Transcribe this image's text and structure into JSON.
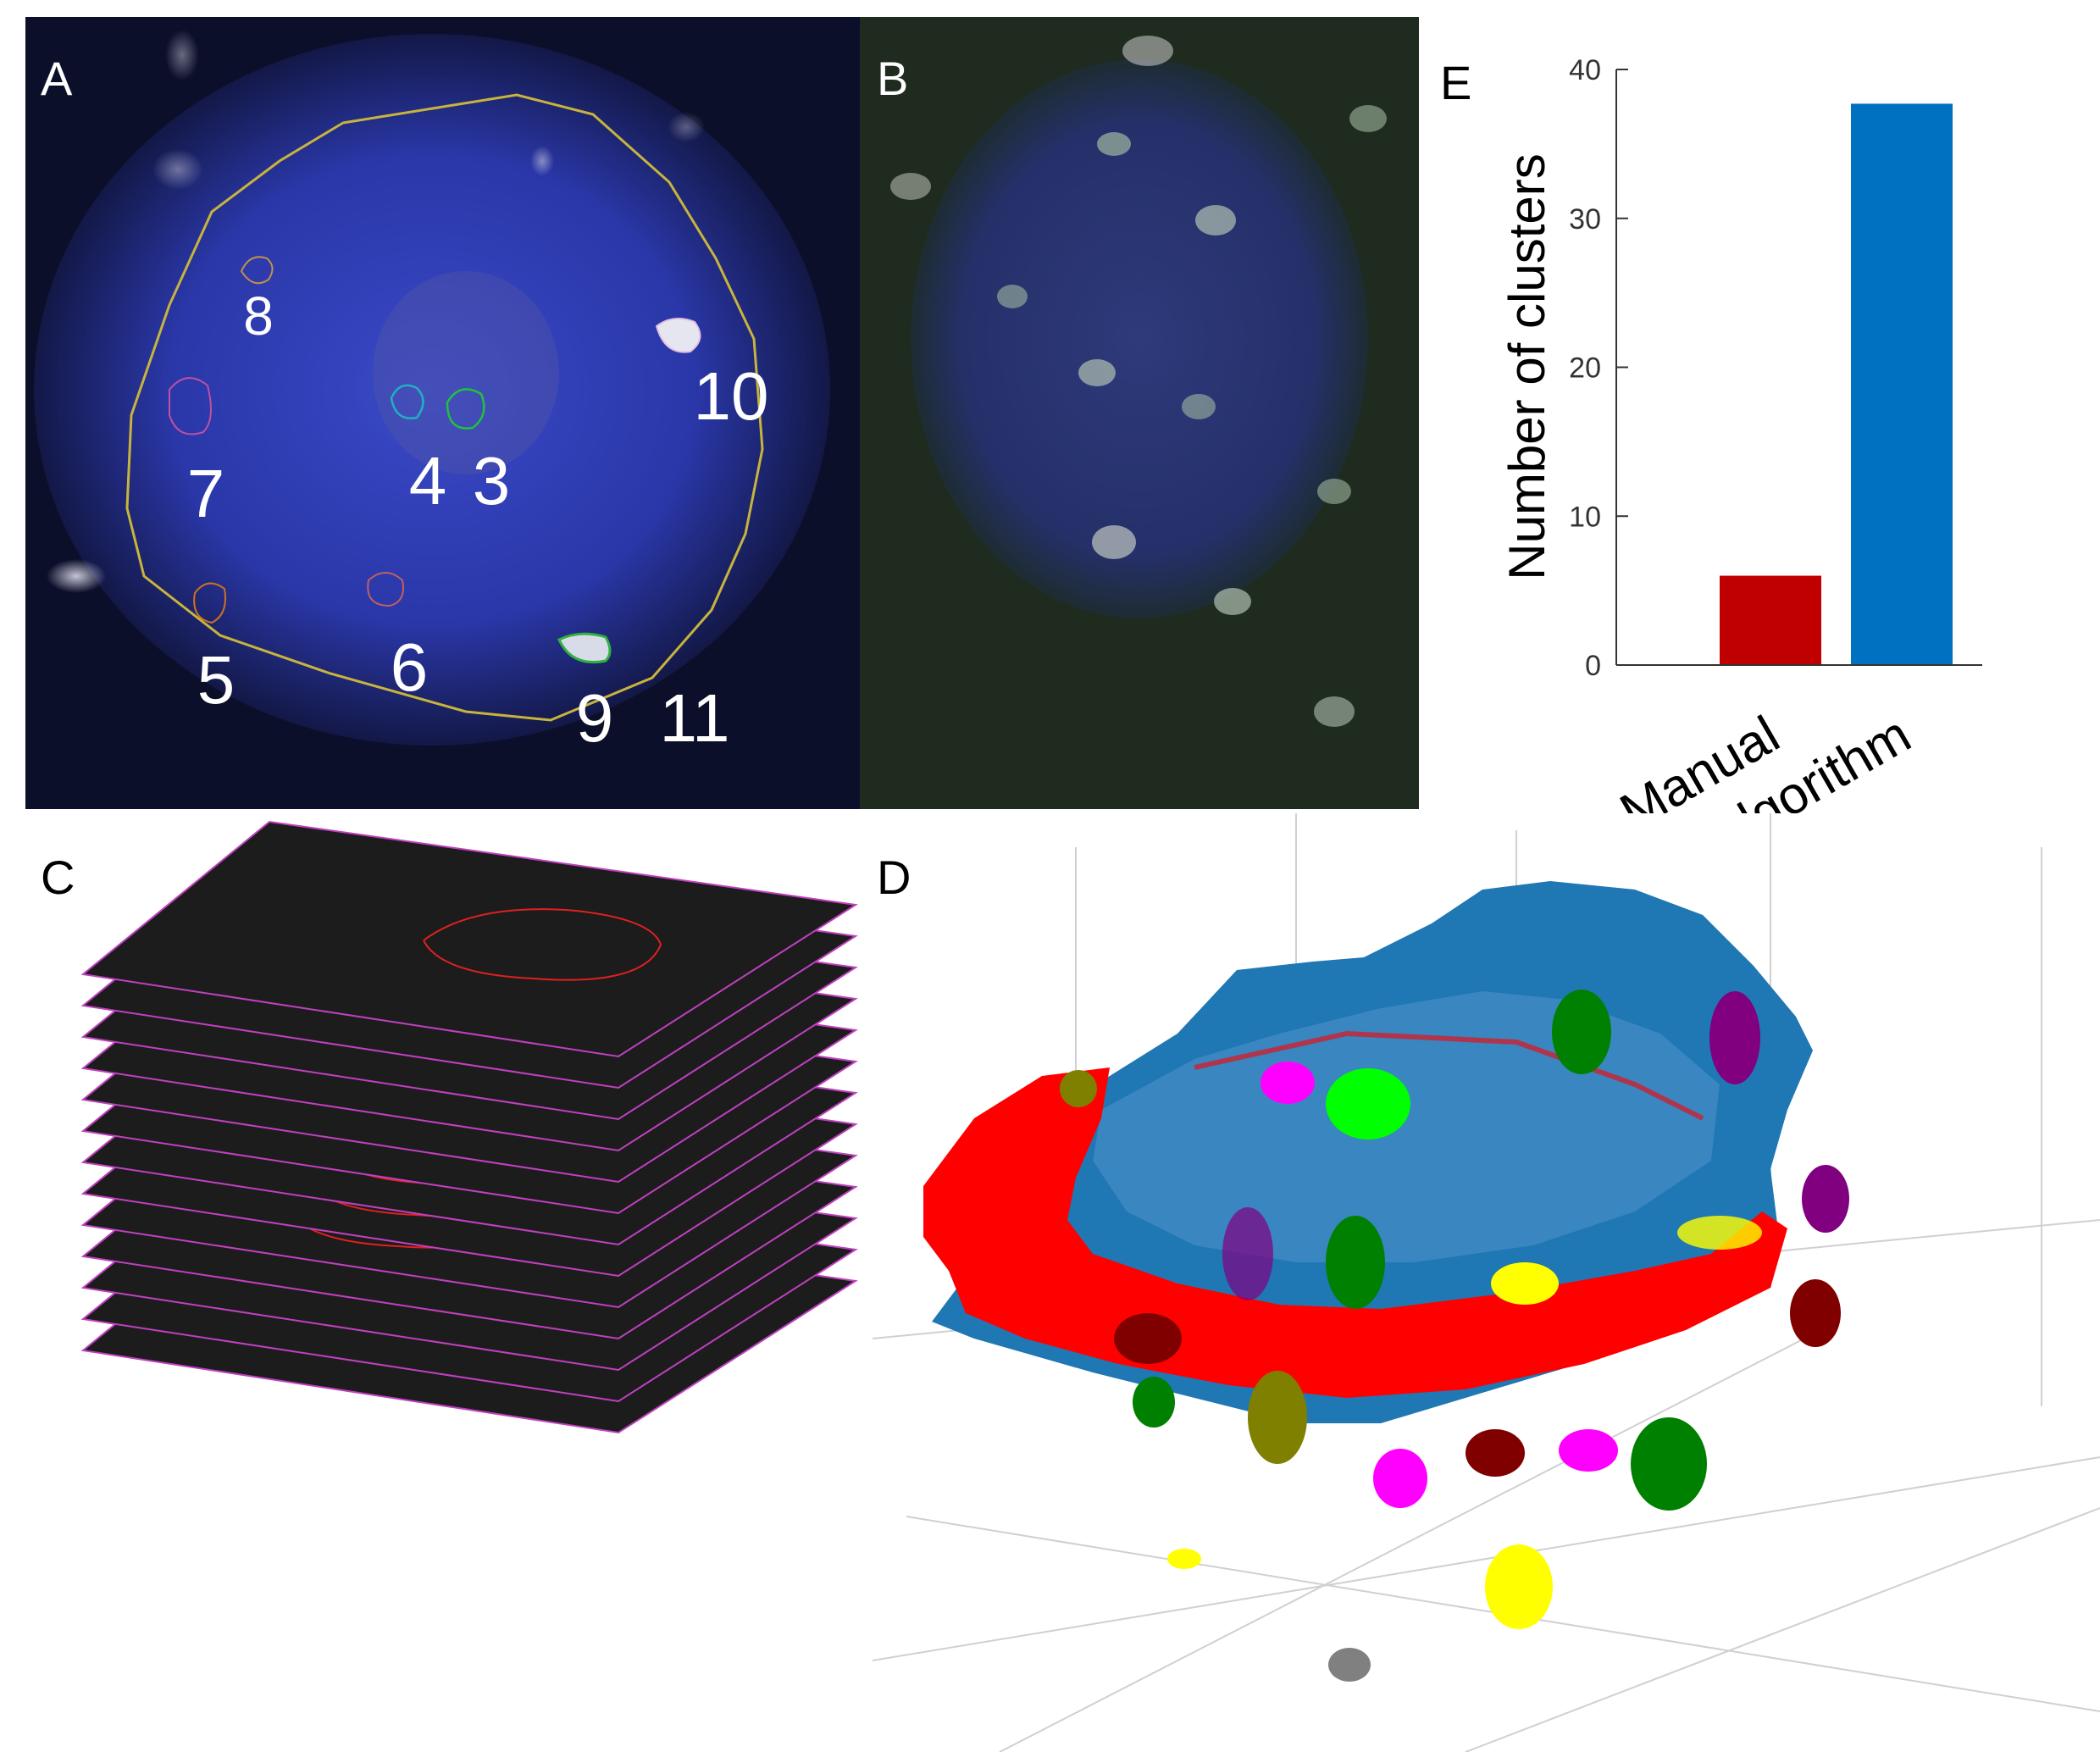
{
  "figure": {
    "panels": {
      "A": {
        "letter": "A",
        "cluster_labels": [
          "8",
          "10",
          "7",
          "4",
          "3",
          "5",
          "6",
          "9",
          "11"
        ]
      },
      "B": {
        "letter": "B"
      },
      "C": {
        "letter": "C",
        "slice_count": 13
      },
      "D": {
        "letter": "D"
      },
      "E": {
        "letter": "E"
      }
    }
  },
  "colors": {
    "outline_yellow": "#c8b43c",
    "nucleus_blue": "#2b3a9e",
    "bar_manual": "#c00000",
    "bar_algorithm": "#0070c0",
    "slice_edge": "#c040c0",
    "mesh_blue": "#1f77b4",
    "mesh_red": "#ff0000"
  },
  "chart_data": {
    "type": "bar",
    "categories": [
      "Manual",
      "Algorithm"
    ],
    "values": [
      6,
      37.7
    ],
    "bar_colors": [
      "#c00000",
      "#0070c0"
    ],
    "ylabel": "Number of clusters",
    "ylim": [
      0,
      40
    ],
    "yticks": [
      0,
      10,
      20,
      30,
      40
    ]
  }
}
